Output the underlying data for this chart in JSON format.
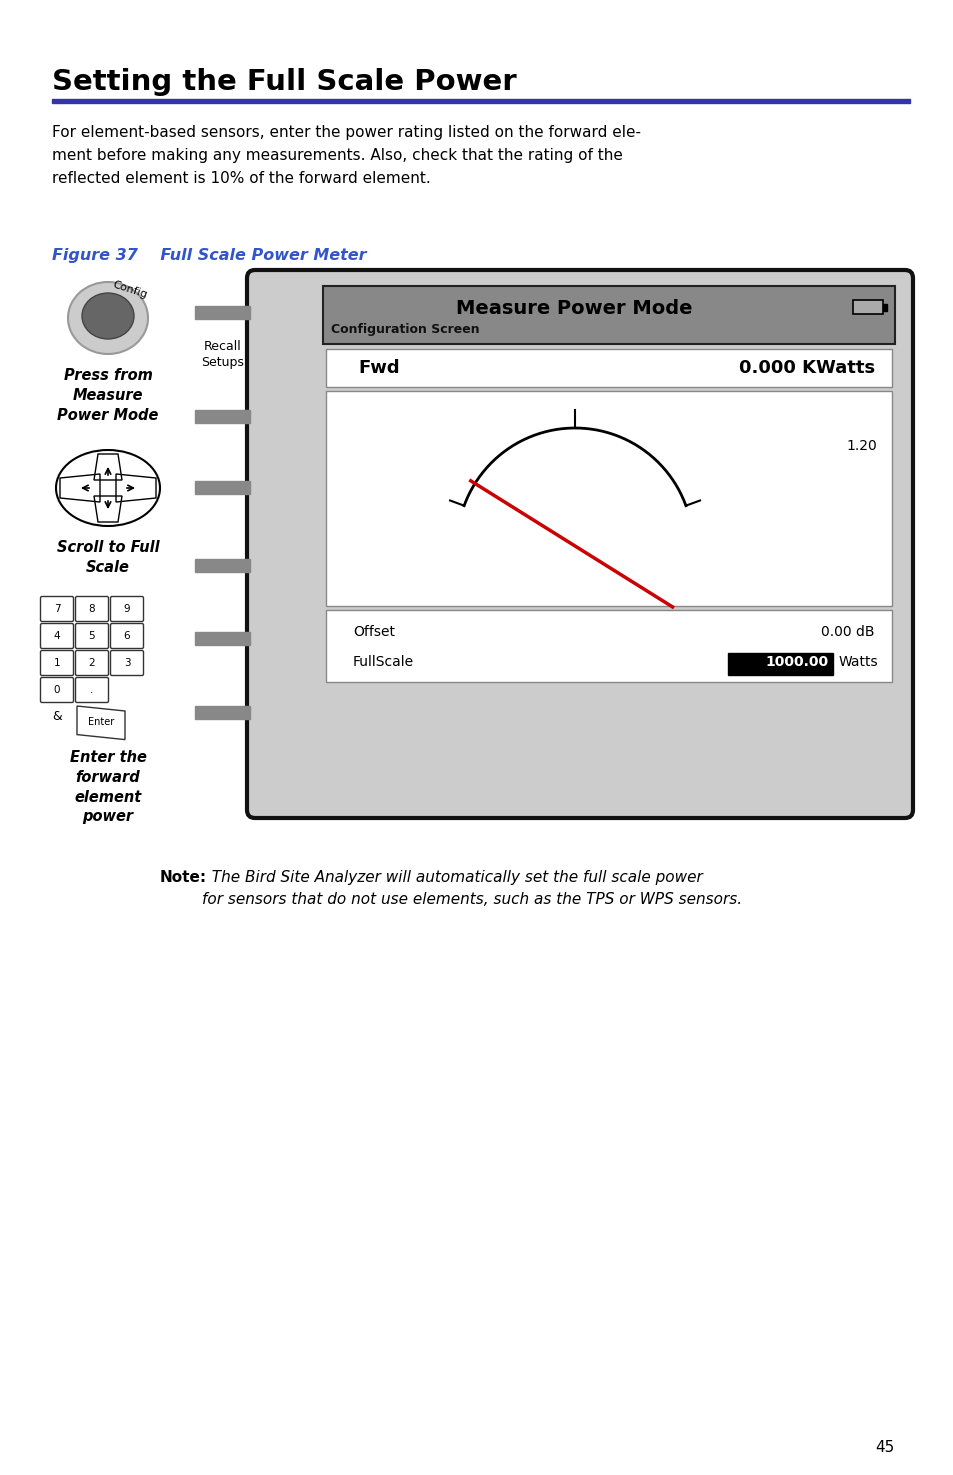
{
  "title": "Setting the Full Scale Power",
  "title_color": "#000000",
  "rule_color": "#3333aa",
  "body_text": "For element-based sensors, enter the power rating listed on the forward ele-\nment before making any measurements. Also, check that the rating of the\nreflected element is 10% of the forward element.",
  "figure_label": "Figure 37",
  "figure_title": "Full Scale Power Meter",
  "figure_color": "#3355cc",
  "label1": "Press from\nMeasure\nPower Mode",
  "label2": "Scroll to Full\nScale",
  "label3": "Enter the\nforward\nelement\npower",
  "recall_setups": "Recall\nSetups",
  "screen_title": "Measure Power Mode",
  "screen_subtitle": "Configuration Screen",
  "screen_fwd_label": "Fwd",
  "screen_fwd_value": "0.000 KWatts",
  "screen_gauge_value": "1.20",
  "screen_offset_label": "Offset",
  "screen_offset_value": "0.00 dB",
  "screen_fullscale_label": "FullScale",
  "screen_fullscale_value": "1000.00",
  "screen_fullscale_unit": "Watts",
  "note_bold": "Note:",
  "note_italic": "  The Bird Site Analyzer will automatically set the full scale power\nfor sensors that do not use elements, such as the TPS or WPS sensors.",
  "page_number": "45",
  "bg_color": "#ffffff",
  "device_bg": "#999999",
  "screen_header_bg": "#888888",
  "screen_white": "#ffffff",
  "screen_border": "#000000"
}
